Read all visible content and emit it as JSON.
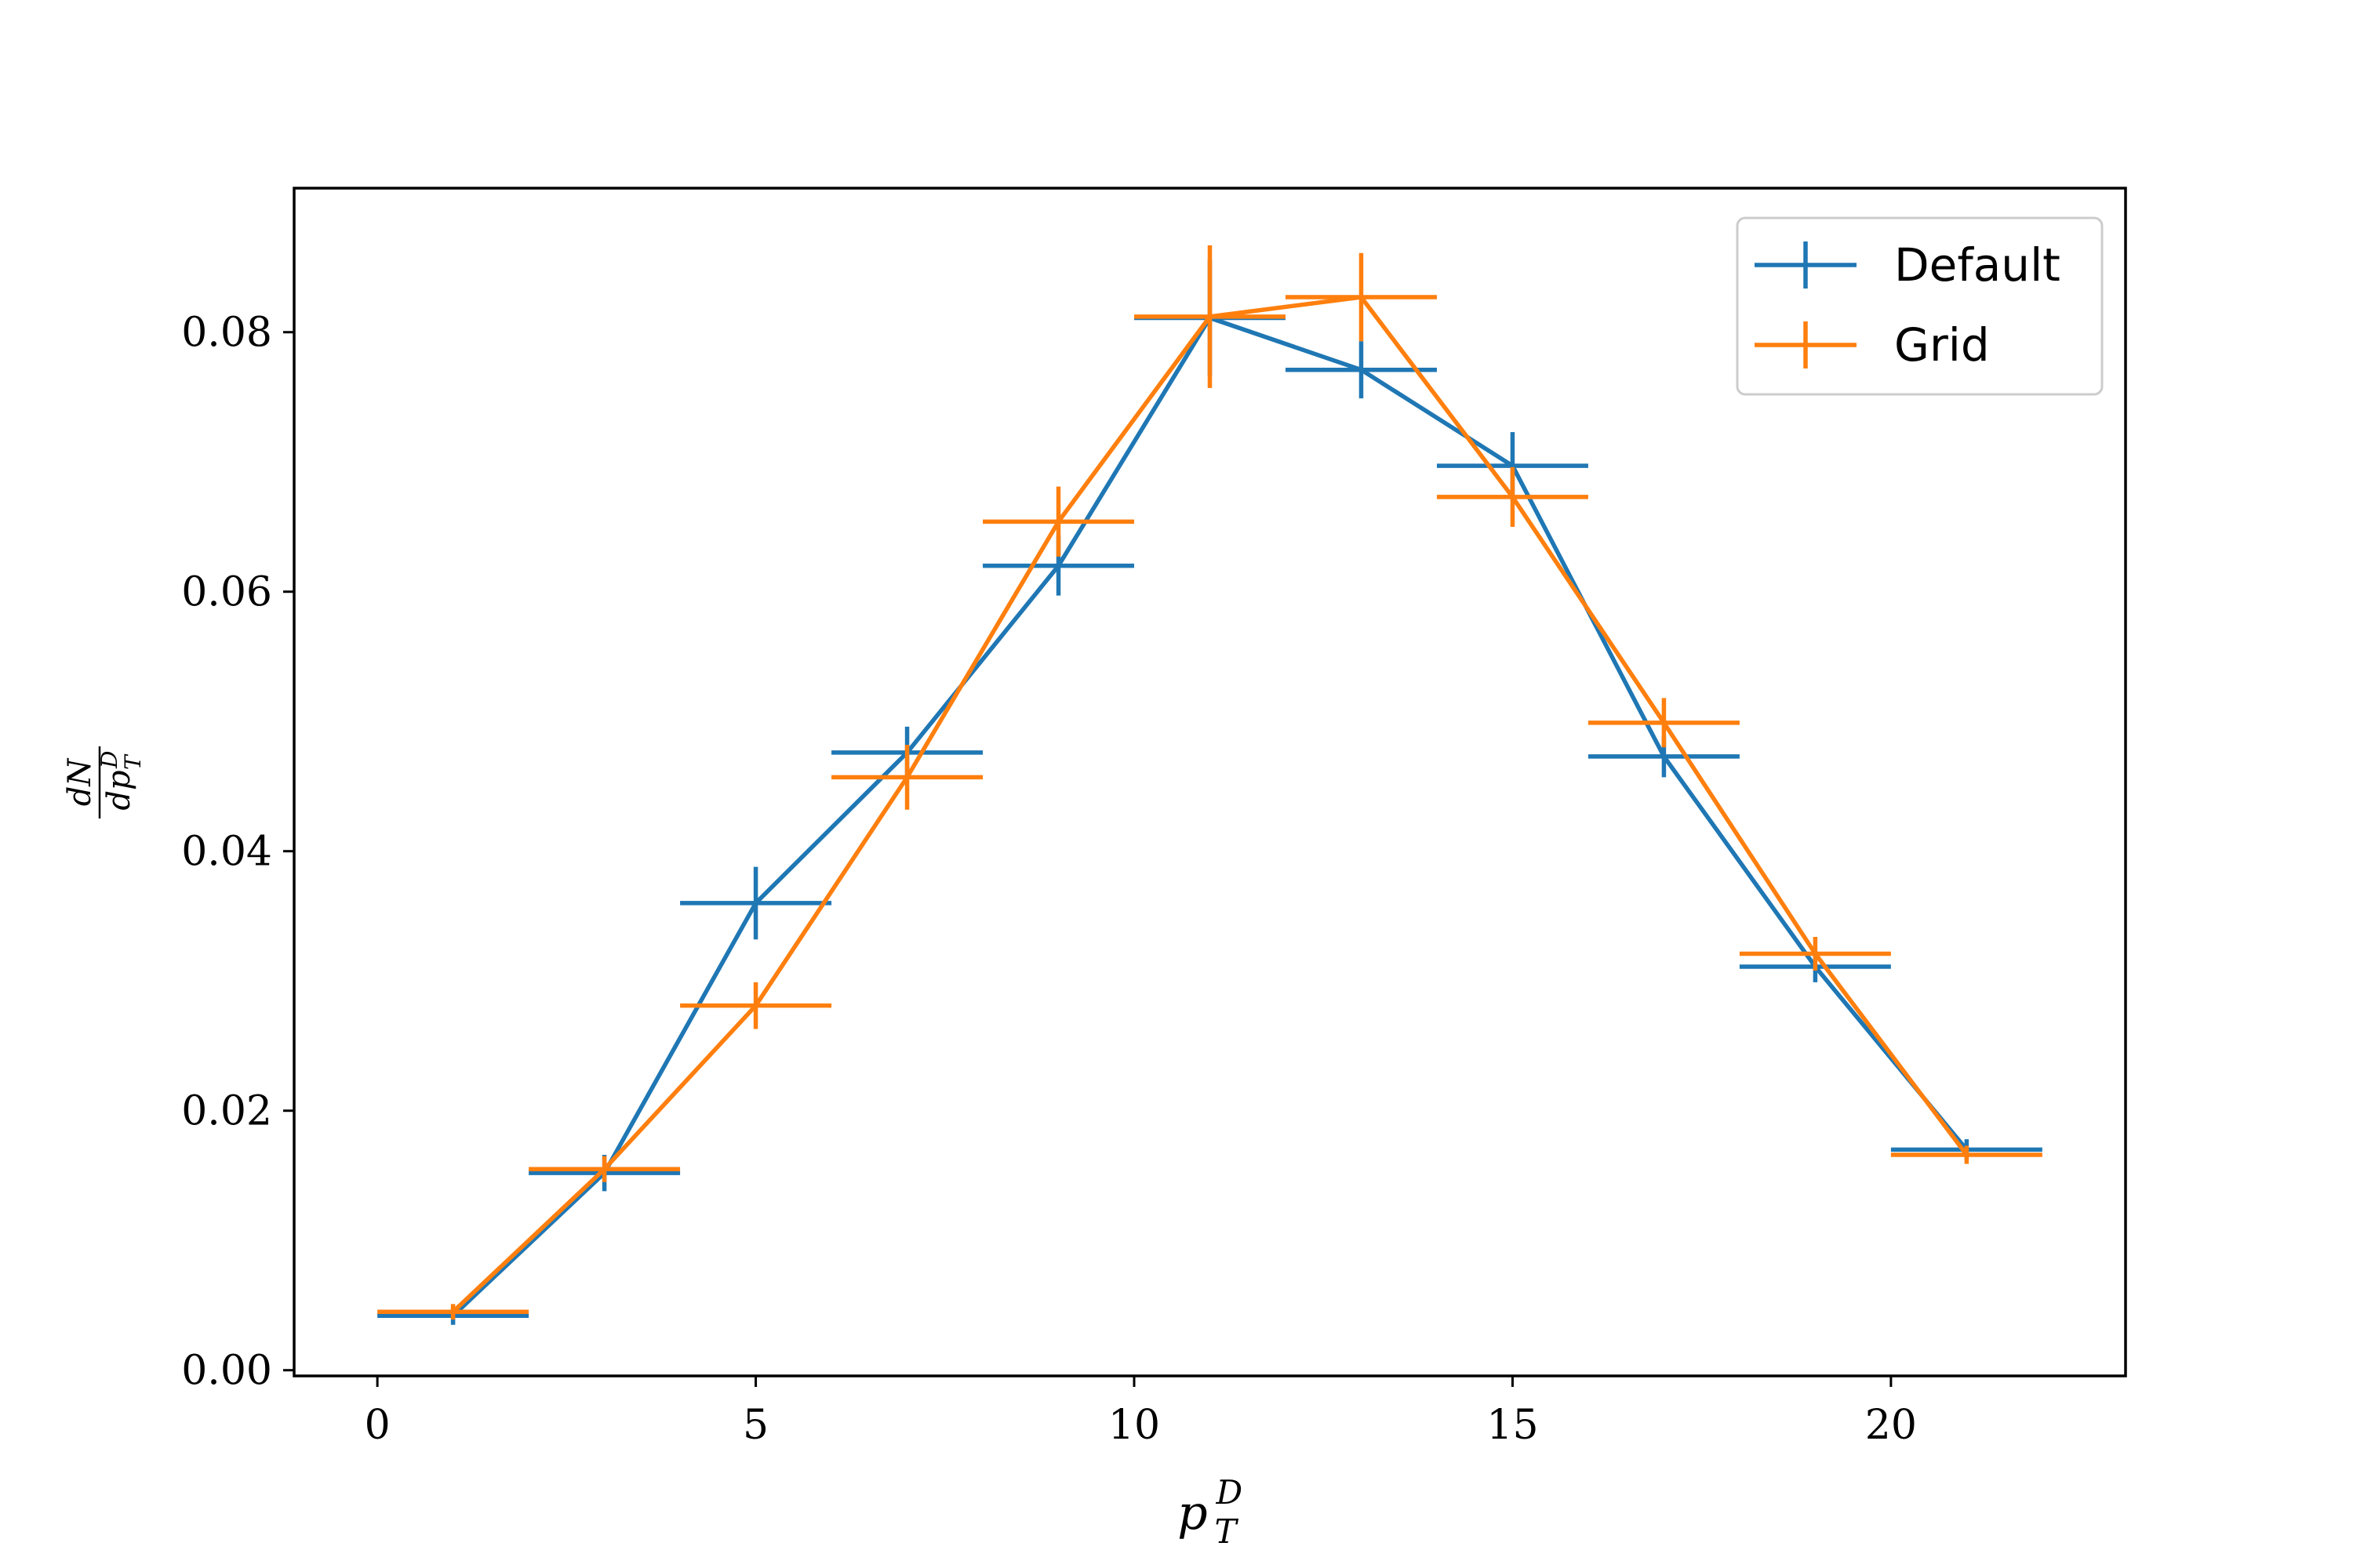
{
  "chart_data": {
    "type": "line",
    "title": "",
    "xlabel": {
      "base": "p",
      "sup": "D",
      "sub": "T"
    },
    "ylabel": {
      "numerator": "dN",
      "denominator_base": "dp",
      "denominator_sup": "D",
      "denominator_sub": "T"
    },
    "xlim": [
      -1.1,
      23.1
    ],
    "ylim": [
      -0.00044,
      0.0911
    ],
    "xticks": [
      0,
      5,
      10,
      15,
      20
    ],
    "xtick_labels": [
      "0",
      "5",
      "10",
      "15",
      "20"
    ],
    "yticks": [
      0.0,
      0.02,
      0.04,
      0.06,
      0.08
    ],
    "ytick_labels": [
      "0.00",
      "0.02",
      "0.04",
      "0.06",
      "0.08"
    ],
    "grid": false,
    "legend_position": "top-right",
    "series": [
      {
        "name": "Default",
        "color": "#1f77b4",
        "x": [
          1,
          3,
          5,
          7,
          9,
          11,
          13,
          15,
          17,
          19,
          21
        ],
        "xerr": [
          1,
          1,
          1,
          1,
          1,
          1,
          1,
          1,
          1,
          1,
          1
        ],
        "y": [
          0.0042,
          0.0152,
          0.036,
          0.0476,
          0.062,
          0.0811,
          0.0771,
          0.0697,
          0.0473,
          0.0311,
          0.017
        ],
        "yerr": [
          0.0007,
          0.0014,
          0.0028,
          0.002,
          0.0023,
          0.0045,
          0.0022,
          0.0026,
          0.0016,
          0.0012,
          0.0008
        ]
      },
      {
        "name": "Grid",
        "color": "#ff7f0e",
        "x": [
          1,
          3,
          5,
          7,
          9,
          11,
          13,
          15,
          17,
          19,
          21
        ],
        "xerr": [
          1,
          1,
          1,
          1,
          1,
          1,
          1,
          1,
          1,
          1,
          1
        ],
        "y": [
          0.0045,
          0.0155,
          0.0281,
          0.0457,
          0.0654,
          0.0812,
          0.0827,
          0.0673,
          0.0499,
          0.0321,
          0.0166
        ],
        "yerr": [
          0.0006,
          0.001,
          0.0018,
          0.0025,
          0.0027,
          0.0055,
          0.0034,
          0.0023,
          0.0019,
          0.0013,
          0.0007
        ]
      }
    ]
  }
}
